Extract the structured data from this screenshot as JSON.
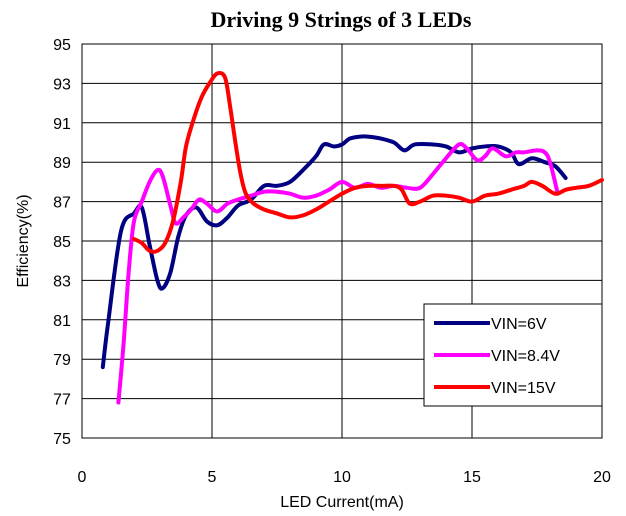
{
  "chart_data": {
    "type": "line",
    "title": "Driving 9 Strings of 3 LEDs",
    "xlabel": "LED Current(mA)",
    "ylabel": "Efficiency(%)",
    "xlim": [
      0,
      20
    ],
    "ylim": [
      75,
      95
    ],
    "xticks": [
      "0",
      "5",
      "10",
      "15",
      "20"
    ],
    "yticks": [
      "75",
      "77",
      "79",
      "81",
      "83",
      "85",
      "87",
      "89",
      "91",
      "93",
      "95"
    ],
    "grid": "vertical lines at x ticks, horizontal lines at every 2%",
    "legend_position": "bottom-right",
    "series": [
      {
        "name": "VIN=6V",
        "color": "#000080",
        "points": [
          [
            0.8,
            78.6
          ],
          [
            1.0,
            80.8
          ],
          [
            1.5,
            85.5
          ],
          [
            2.0,
            86.4
          ],
          [
            2.3,
            86.7
          ],
          [
            2.6,
            84.8
          ],
          [
            2.9,
            83.0
          ],
          [
            3.1,
            82.6
          ],
          [
            3.4,
            83.4
          ],
          [
            3.7,
            85.2
          ],
          [
            4.0,
            86.3
          ],
          [
            4.4,
            86.7
          ],
          [
            4.8,
            86.0
          ],
          [
            5.2,
            85.8
          ],
          [
            5.6,
            86.2
          ],
          [
            6.0,
            86.8
          ],
          [
            6.5,
            87.1
          ],
          [
            7.0,
            87.8
          ],
          [
            7.5,
            87.8
          ],
          [
            8.0,
            88.0
          ],
          [
            8.5,
            88.6
          ],
          [
            9.0,
            89.3
          ],
          [
            9.3,
            89.9
          ],
          [
            9.7,
            89.8
          ],
          [
            10.0,
            89.9
          ],
          [
            10.3,
            90.2
          ],
          [
            10.7,
            90.3
          ],
          [
            11.0,
            90.3
          ],
          [
            11.5,
            90.2
          ],
          [
            12.0,
            90.0
          ],
          [
            12.4,
            89.6
          ],
          [
            12.8,
            89.9
          ],
          [
            13.5,
            89.9
          ],
          [
            14.0,
            89.8
          ],
          [
            14.5,
            89.5
          ],
          [
            15.0,
            89.7
          ],
          [
            15.5,
            89.8
          ],
          [
            16.0,
            89.8
          ],
          [
            16.5,
            89.5
          ],
          [
            16.8,
            88.9
          ],
          [
            17.3,
            89.2
          ],
          [
            17.8,
            89.0
          ],
          [
            18.2,
            88.8
          ],
          [
            18.6,
            88.2
          ]
        ]
      },
      {
        "name": "VIN=8.4V",
        "color": "#FF00FF",
        "points": [
          [
            1.4,
            76.8
          ],
          [
            1.6,
            79.8
          ],
          [
            1.8,
            83.5
          ],
          [
            2.0,
            86.0
          ],
          [
            2.3,
            87.0
          ],
          [
            2.6,
            88.0
          ],
          [
            2.9,
            88.6
          ],
          [
            3.1,
            88.3
          ],
          [
            3.4,
            86.8
          ],
          [
            3.6,
            85.9
          ],
          [
            3.9,
            86.2
          ],
          [
            4.2,
            86.6
          ],
          [
            4.5,
            87.1
          ],
          [
            4.8,
            86.9
          ],
          [
            5.2,
            86.5
          ],
          [
            5.6,
            86.9
          ],
          [
            6.0,
            87.1
          ],
          [
            6.5,
            87.3
          ],
          [
            7.0,
            87.5
          ],
          [
            7.5,
            87.5
          ],
          [
            8.0,
            87.4
          ],
          [
            8.5,
            87.2
          ],
          [
            9.0,
            87.3
          ],
          [
            9.5,
            87.6
          ],
          [
            10.0,
            88.0
          ],
          [
            10.5,
            87.7
          ],
          [
            11.0,
            87.9
          ],
          [
            11.5,
            87.7
          ],
          [
            12.0,
            87.8
          ],
          [
            12.5,
            87.7
          ],
          [
            13.0,
            87.7
          ],
          [
            13.5,
            88.4
          ],
          [
            14.0,
            89.2
          ],
          [
            14.5,
            89.9
          ],
          [
            14.8,
            89.7
          ],
          [
            15.2,
            89.1
          ],
          [
            15.5,
            89.3
          ],
          [
            15.8,
            89.7
          ],
          [
            16.3,
            89.3
          ],
          [
            16.7,
            89.5
          ],
          [
            17.0,
            89.5
          ],
          [
            17.5,
            89.6
          ],
          [
            17.8,
            89.5
          ],
          [
            18.0,
            89.0
          ],
          [
            18.3,
            87.4
          ]
        ]
      },
      {
        "name": "VIN=15V",
        "color": "#FF0000",
        "points": [
          [
            2.0,
            85.1
          ],
          [
            2.3,
            84.9
          ],
          [
            2.6,
            84.5
          ],
          [
            2.9,
            84.5
          ],
          [
            3.2,
            84.9
          ],
          [
            3.5,
            86.0
          ],
          [
            3.8,
            88.0
          ],
          [
            4.0,
            89.8
          ],
          [
            4.3,
            91.2
          ],
          [
            4.6,
            92.3
          ],
          [
            4.9,
            93.0
          ],
          [
            5.2,
            93.5
          ],
          [
            5.5,
            93.3
          ],
          [
            5.7,
            91.8
          ],
          [
            5.9,
            90.0
          ],
          [
            6.1,
            88.4
          ],
          [
            6.3,
            87.4
          ],
          [
            6.6,
            86.9
          ],
          [
            7.0,
            86.6
          ],
          [
            7.5,
            86.4
          ],
          [
            8.0,
            86.2
          ],
          [
            8.5,
            86.3
          ],
          [
            9.0,
            86.6
          ],
          [
            9.5,
            87.0
          ],
          [
            10.0,
            87.4
          ],
          [
            10.5,
            87.7
          ],
          [
            11.0,
            87.8
          ],
          [
            11.5,
            87.8
          ],
          [
            12.0,
            87.8
          ],
          [
            12.3,
            87.6
          ],
          [
            12.6,
            86.9
          ],
          [
            13.0,
            87.0
          ],
          [
            13.5,
            87.3
          ],
          [
            14.0,
            87.3
          ],
          [
            14.5,
            87.2
          ],
          [
            15.0,
            87.0
          ],
          [
            15.5,
            87.3
          ],
          [
            16.0,
            87.4
          ],
          [
            16.5,
            87.6
          ],
          [
            17.0,
            87.8
          ],
          [
            17.3,
            88.0
          ],
          [
            17.7,
            87.8
          ],
          [
            18.2,
            87.4
          ],
          [
            18.6,
            87.6
          ],
          [
            19.0,
            87.7
          ],
          [
            19.5,
            87.8
          ],
          [
            20.0,
            88.1
          ]
        ]
      }
    ]
  }
}
